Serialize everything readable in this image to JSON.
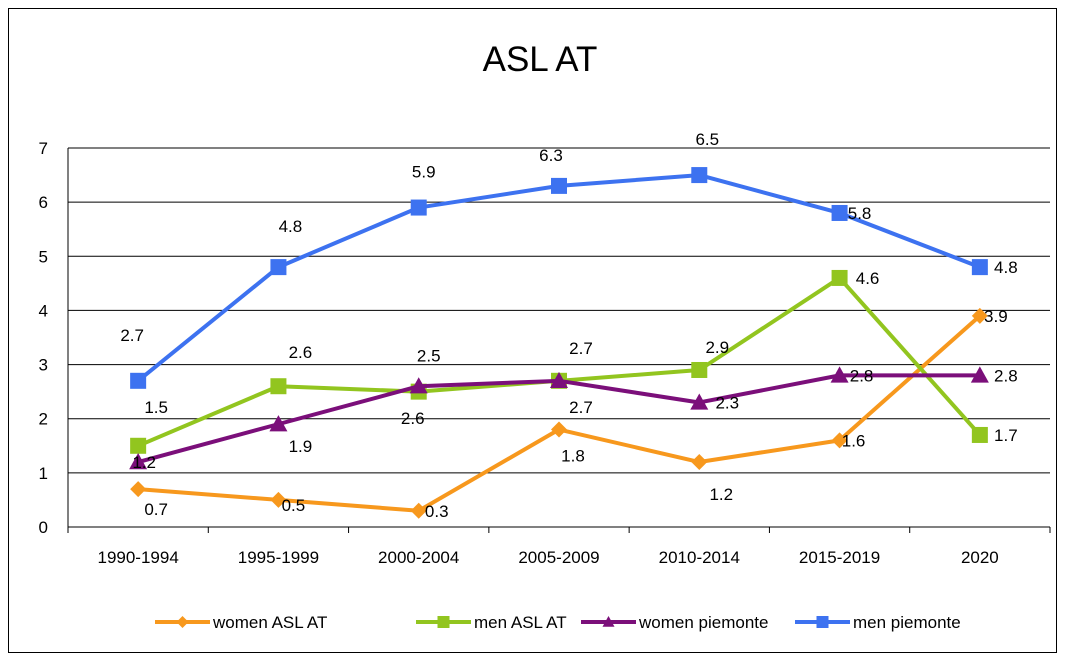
{
  "chart_data": {
    "type": "line",
    "title": "ASL AT",
    "xlabel": "",
    "ylabel": "",
    "categories": [
      "1990-1994",
      "1995-1999",
      "2000-2004",
      "2005-2009",
      "2010-2014",
      "2015-2019",
      "2020"
    ],
    "y_ticks": [
      "0",
      "1",
      "2",
      "3",
      "4",
      "5",
      "6",
      "7"
    ],
    "ylim": [
      0,
      7
    ],
    "grid": "horizontal",
    "legend_position": "bottom",
    "series": [
      {
        "name": "women ASL AT",
        "color": "#F7981D",
        "marker": "diamond",
        "values": [
          0.7,
          0.5,
          0.3,
          1.8,
          1.2,
          1.6,
          3.9
        ],
        "labels": [
          "0.7",
          "0.5",
          "0.3",
          "1.8",
          "1.2",
          "1.6",
          "3.9"
        ]
      },
      {
        "name": "men ASL AT",
        "color": "#92C51F",
        "marker": "square",
        "values": [
          1.5,
          2.6,
          2.5,
          2.7,
          2.9,
          4.6,
          1.7
        ],
        "labels": [
          "1.5",
          "2.6",
          "2.5",
          "2.7",
          "2.9",
          "4.6",
          "1.7"
        ]
      },
      {
        "name": "women piemonte",
        "color": "#7B0F7A",
        "marker": "triangle",
        "values": [
          1.2,
          1.9,
          2.6,
          2.7,
          2.3,
          2.8,
          2.8
        ],
        "labels": [
          "1.2",
          "1.9",
          "2.6",
          "2.7",
          "2.3",
          "2.8",
          "2.8"
        ]
      },
      {
        "name": "men piemonte",
        "color": "#3D72F0",
        "marker": "square",
        "values": [
          2.7,
          4.8,
          5.9,
          6.3,
          6.5,
          5.8,
          4.8
        ],
        "labels": [
          "2.7",
          "4.8",
          "5.9",
          "6.3",
          "6.5",
          "5.8",
          "4.8"
        ]
      }
    ]
  }
}
